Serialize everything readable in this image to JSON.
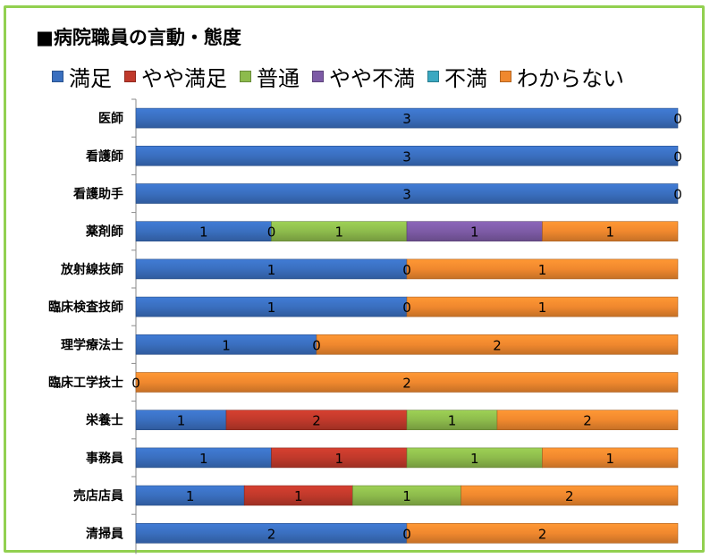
{
  "chart_data": {
    "type": "bar",
    "orientation": "horizontal",
    "stacked": true,
    "normalized": true,
    "title": "■病院職員の言動・態度",
    "legend_position": "top",
    "categories": [
      "医師",
      "看護師",
      "看護助手",
      "薬剤師",
      "放射線技師",
      "臨床検査技師",
      "理学療法士",
      "臨床工学技士",
      "栄養士",
      "事務員",
      "売店店員",
      "清掃員"
    ],
    "series": [
      {
        "name": "満足",
        "color": "#3a6fbf",
        "values": [
          3,
          3,
          3,
          1,
          1,
          1,
          1,
          0,
          1,
          1,
          1,
          2
        ]
      },
      {
        "name": "やや満足",
        "color": "#c0392b",
        "values": [
          0,
          0,
          0,
          0,
          0,
          0,
          0,
          0,
          2,
          1,
          1,
          0
        ]
      },
      {
        "name": "普通",
        "color": "#8dbb4c",
        "values": [
          0,
          0,
          0,
          1,
          0,
          0,
          0,
          0,
          1,
          1,
          1,
          0
        ]
      },
      {
        "name": "やや不満",
        "color": "#7d5ba6",
        "values": [
          0,
          0,
          0,
          1,
          0,
          0,
          0,
          0,
          0,
          0,
          0,
          0
        ]
      },
      {
        "name": "不満",
        "color": "#3aa8c1",
        "values": [
          0,
          0,
          0,
          0,
          0,
          0,
          0,
          0,
          0,
          0,
          0,
          0
        ]
      },
      {
        "name": "わからない",
        "color": "#f0882e",
        "values": [
          0,
          0,
          0,
          1,
          1,
          1,
          2,
          2,
          2,
          1,
          2,
          2
        ]
      }
    ],
    "data_labels": [
      [
        {
          "text": "3",
          "series": 0
        },
        {
          "text": "0",
          "series": 5
        }
      ],
      [
        {
          "text": "3",
          "series": 0
        },
        {
          "text": "0",
          "series": 5
        }
      ],
      [
        {
          "text": "3",
          "series": 0
        },
        {
          "text": "0",
          "series": 5
        }
      ],
      [
        {
          "text": "1",
          "series": 0
        },
        {
          "text": "0",
          "series": 1
        },
        {
          "text": "1",
          "series": 2
        },
        {
          "text": "1",
          "series": 3
        },
        {
          "text": "1",
          "series": 5
        }
      ],
      [
        {
          "text": "1",
          "series": 0
        },
        {
          "text": "0",
          "series": 1
        },
        {
          "text": "1",
          "series": 5
        }
      ],
      [
        {
          "text": "1",
          "series": 0
        },
        {
          "text": "0",
          "series": 1
        },
        {
          "text": "1",
          "series": 5
        }
      ],
      [
        {
          "text": "1",
          "series": 0
        },
        {
          "text": "0",
          "series": 1
        },
        {
          "text": "2",
          "series": 5
        }
      ],
      [
        {
          "text": "0",
          "series": 0
        },
        {
          "text": "2",
          "series": 5
        }
      ],
      [
        {
          "text": "1",
          "series": 0
        },
        {
          "text": "2",
          "series": 1
        },
        {
          "text": "1",
          "series": 2
        },
        {
          "text": "2",
          "series": 5
        }
      ],
      [
        {
          "text": "1",
          "series": 0
        },
        {
          "text": "1",
          "series": 1
        },
        {
          "text": "1",
          "series": 2
        },
        {
          "text": "1",
          "series": 5
        }
      ],
      [
        {
          "text": "1",
          "series": 0
        },
        {
          "text": "1",
          "series": 1
        },
        {
          "text": "1",
          "series": 2
        },
        {
          "text": "2",
          "series": 5
        }
      ],
      [
        {
          "text": "2",
          "series": 0
        },
        {
          "text": "0",
          "series": 1
        },
        {
          "text": "2",
          "series": 5
        }
      ]
    ]
  }
}
